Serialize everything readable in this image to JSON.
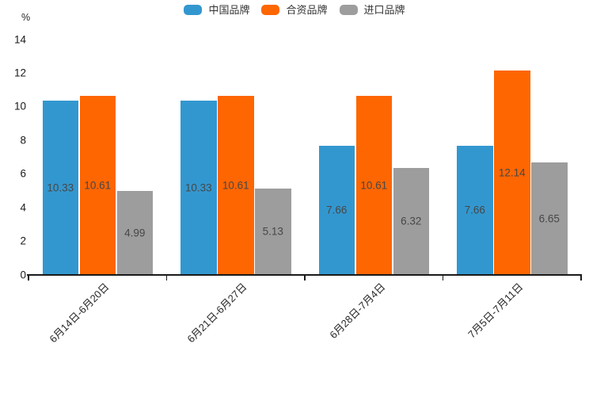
{
  "chart_data": {
    "type": "bar",
    "title": "",
    "unit_label": "%",
    "categories": [
      "6月14日-6月20日",
      "6月21日-6月27日",
      "6月28日-7月4日",
      "7月5日-7月11日"
    ],
    "series": [
      {
        "name": "中国品牌",
        "color": "#3397cf",
        "values": [
          10.33,
          10.33,
          7.66,
          7.66
        ]
      },
      {
        "name": "合资品牌",
        "color": "#fe6602",
        "values": [
          10.61,
          10.61,
          10.61,
          12.14
        ]
      },
      {
        "name": "进口品牌",
        "color": "#9d9d9d",
        "values": [
          4.99,
          5.13,
          6.32,
          6.65
        ]
      }
    ],
    "bar_labels": [
      [
        "10.33",
        "10.33",
        "7.66",
        "7.66"
      ],
      [
        "10.61",
        "10.61",
        "10.61",
        "12.14"
      ],
      [
        "4.99",
        "5.13",
        "6.32",
        "6.65"
      ]
    ],
    "ylim": [
      0,
      14
    ],
    "ytick_step": 2,
    "yticks": [
      "0",
      "2",
      "4",
      "6",
      "8",
      "10",
      "12",
      "14"
    ],
    "grid": false,
    "legend_position": "top",
    "value_label_color": "#474747",
    "axis_color": "#1a1a1a"
  }
}
